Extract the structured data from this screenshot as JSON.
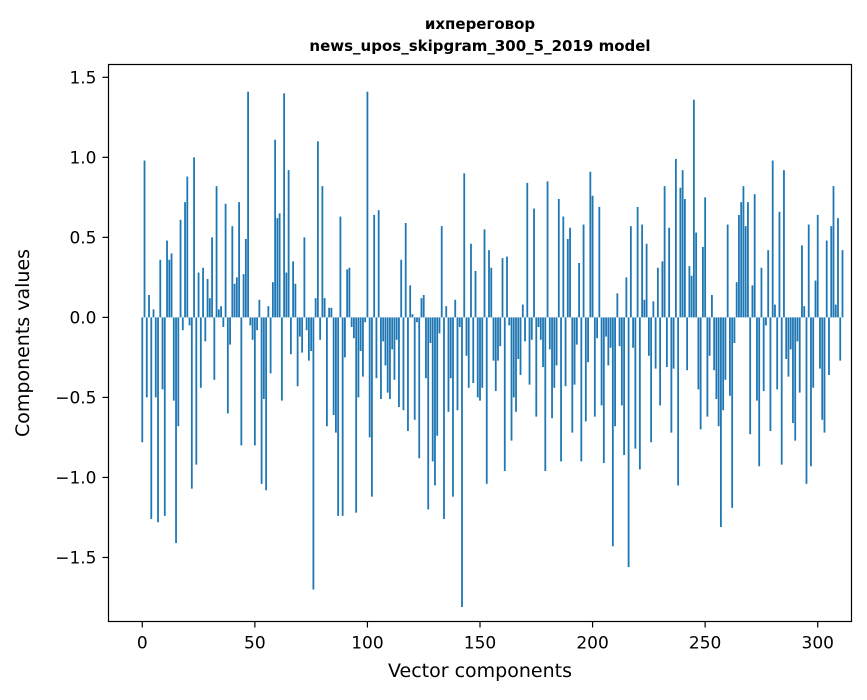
{
  "chart_data": {
    "type": "bar",
    "title": "ихпереговор",
    "subtitle": "news_upos_skipgram_300_5_2019 model",
    "xlabel": "Vector components",
    "ylabel": "Components values",
    "xlim": [
      -15,
      315
    ],
    "ylim": [
      -1.9,
      1.58
    ],
    "xticks": [
      0,
      50,
      100,
      150,
      200,
      250,
      300
    ],
    "yticks": [
      -1.5,
      -1.0,
      -0.5,
      0.0,
      0.5,
      1.0,
      1.5
    ],
    "xtick_labels": [
      "0",
      "50",
      "100",
      "150",
      "200",
      "250",
      "300"
    ],
    "ytick_labels": [
      "−1.5",
      "−1.0",
      "−0.5",
      "0.0",
      "0.5",
      "1.0",
      "1.5"
    ],
    "grid": false,
    "bar_color": "#1f77b4",
    "values": [
      -0.78,
      0.98,
      -0.5,
      0.14,
      -1.26,
      0.05,
      -0.5,
      -1.28,
      0.36,
      -0.45,
      -1.24,
      0.48,
      0.36,
      0.4,
      -0.52,
      -1.41,
      -0.68,
      0.61,
      -0.08,
      0.72,
      0.88,
      -0.05,
      -1.07,
      1.0,
      -0.92,
      0.28,
      -0.44,
      0.31,
      -0.15,
      0.24,
      0.12,
      0.5,
      -0.39,
      0.82,
      0.05,
      0.07,
      -0.06,
      0.71,
      -0.6,
      -0.17,
      0.57,
      0.21,
      0.25,
      0.72,
      -0.8,
      0.27,
      0.49,
      1.41,
      -0.05,
      -0.14,
      -0.8,
      -0.08,
      0.11,
      -1.04,
      -0.51,
      -1.08,
      0.07,
      -0.35,
      0.22,
      1.11,
      0.62,
      0.65,
      -0.52,
      1.4,
      0.28,
      0.92,
      -0.23,
      0.35,
      0.21,
      -0.43,
      -0.12,
      -0.22,
      0.5,
      -0.08,
      -0.27,
      -0.21,
      -1.7,
      0.12,
      1.1,
      -0.14,
      0.82,
      0.12,
      -0.68,
      0.06,
      0.06,
      -0.61,
      -0.72,
      -1.24,
      0.63,
      -1.24,
      -0.25,
      0.3,
      0.31,
      -0.06,
      -0.13,
      -1.22,
      -0.5,
      -0.21,
      -0.37,
      -0.03,
      1.41,
      -0.75,
      -1.12,
      0.64,
      -0.38,
      0.67,
      -0.51,
      -0.15,
      -0.3,
      -0.47,
      -0.51,
      -0.2,
      -0.39,
      -0.14,
      -0.56,
      0.36,
      -0.58,
      0.59,
      -0.71,
      0.2,
      0.02,
      -0.64,
      -0.03,
      -0.88,
      0.12,
      0.14,
      -0.38,
      -1.2,
      -0.16,
      -0.9,
      -1.05,
      -0.74,
      -0.1,
      0.57,
      -1.26,
      0.07,
      -0.59,
      -0.38,
      -1.12,
      0.11,
      -0.58,
      -0.06,
      -1.81,
      0.9,
      -0.24,
      -0.44,
      0.46,
      -0.41,
      0.29,
      -0.5,
      -0.52,
      -0.44,
      0.55,
      -1.04,
      0.42,
      0.31,
      -0.27,
      -0.46,
      -0.27,
      -0.18,
      0.37,
      -0.96,
      0.38,
      -0.05,
      -0.77,
      -0.5,
      -0.59,
      -0.26,
      -0.36,
      0.08,
      -0.15,
      0.84,
      -0.42,
      -0.14,
      0.68,
      -0.62,
      -0.06,
      -0.14,
      -0.31,
      -0.96,
      0.85,
      -0.2,
      -0.63,
      -0.44,
      -0.3,
      0.74,
      -0.9,
      0.63,
      -0.43,
      0.49,
      0.56,
      -0.72,
      -0.42,
      -0.17,
      0.34,
      -0.9,
      0.58,
      -0.65,
      -0.28,
      0.91,
      0.76,
      -0.62,
      -0.13,
      0.69,
      -0.55,
      -0.91,
      -0.12,
      -0.3,
      -0.19,
      -1.43,
      -0.68,
      0.15,
      -0.18,
      -0.55,
      -0.86,
      0.25,
      -1.56,
      0.57,
      -0.19,
      -0.82,
      0.69,
      -0.95,
      0.58,
      0.11,
      0.46,
      -0.24,
      -0.78,
      0.1,
      -0.32,
      0.31,
      -0.55,
      0.35,
      0.82,
      -0.31,
      0.56,
      -0.72,
      -0.32,
      0.99,
      -1.05,
      0.81,
      0.92,
      0.74,
      -0.33,
      0.32,
      0.26,
      1.36,
      0.53,
      -0.45,
      -0.7,
      0.44,
      0.75,
      -0.62,
      -0.24,
      0.14,
      -0.33,
      -0.51,
      -0.68,
      -1.31,
      -0.58,
      -0.39,
      0.58,
      -0.49,
      -1.19,
      -0.16,
      0.22,
      0.64,
      0.72,
      0.82,
      0.57,
      0.72,
      -0.73,
      0.2,
      0.77,
      -0.52,
      -0.93,
      0.31,
      -0.46,
      -0.05,
      0.42,
      -0.71,
      0.98,
      0.08,
      -0.45,
      0.66,
      -0.92,
      0.92,
      -0.26,
      -0.37,
      -0.2,
      -0.66,
      -0.77,
      -0.15,
      -0.47,
      0.45,
      0.07,
      -1.04,
      0.58,
      -0.93,
      -0.44,
      0.23,
      0.64,
      -0.32,
      -0.64,
      -0.72,
      0.48,
      -0.36,
      0.57,
      0.82,
      0.08,
      0.62,
      -0.27,
      0.42
    ]
  }
}
